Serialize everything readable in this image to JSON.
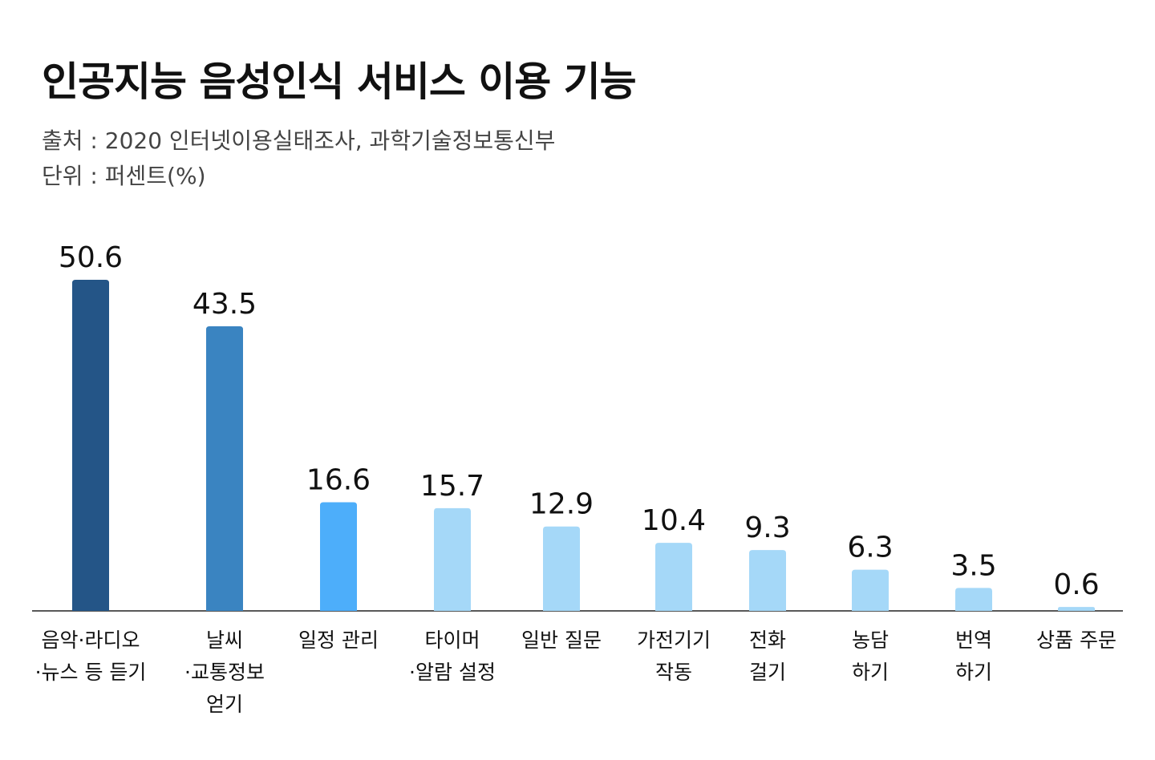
{
  "chart_data": {
    "type": "bar",
    "title": "인공지능 음성인식 서비스 이용 기능",
    "source": "출처 : 2020 인터넷이용실태조사, 과학기술정보통신부",
    "unit": "단위 : 퍼센트(%)",
    "categories": [
      [
        "음악·라디오",
        "·뉴스 등 듣기"
      ],
      [
        "날씨",
        "·교통정보",
        "얻기"
      ],
      [
        "일정 관리"
      ],
      [
        "타이머",
        "·알람 설정"
      ],
      [
        "일반 질문"
      ],
      [
        "가전기기",
        "작동"
      ],
      [
        "전화",
        "걸기"
      ],
      [
        "농담",
        "하기"
      ],
      [
        "번역",
        "하기"
      ],
      [
        "상품 주문"
      ]
    ],
    "values": [
      50.6,
      43.5,
      16.6,
      15.7,
      12.9,
      10.4,
      9.3,
      6.3,
      3.5,
      0.6
    ],
    "value_labels": [
      "50.6",
      "43.5",
      "16.6",
      "15.7",
      "12.9",
      "10.4",
      "9.3",
      "6.3",
      "3.5",
      "0.6"
    ],
    "colors": [
      "#245587",
      "#3a84c1",
      "#4daefa",
      "#a5d8f8",
      "#a5d8f8",
      "#a5d8f8",
      "#a5d8f8",
      "#a5d8f8",
      "#a5d8f8",
      "#a5d8f8"
    ],
    "ylim": [
      0,
      50.6
    ],
    "grid": false,
    "legend": "none"
  }
}
